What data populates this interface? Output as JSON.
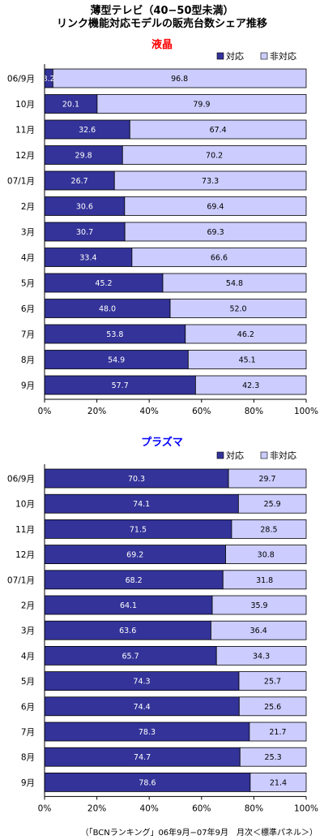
{
  "header": {
    "title_line1": "薄型テレビ（40−50型未満）",
    "title_line2": "リンク機能対応モデルの販売台数シェア推移"
  },
  "colors": {
    "supported": "#333399",
    "unsupported": "#ccccff",
    "lcd_title": "#ff0000",
    "plasma_title": "#0000ff"
  },
  "footer": {
    "source": "（「BCNランキング」06年9月−07年9月　月次＜標準パネル＞）"
  },
  "chart_data": [
    {
      "type": "bar",
      "orientation": "horizontal",
      "stacked": "percent",
      "title": "液晶",
      "categories": [
        "06/9月",
        "10月",
        "11月",
        "12月",
        "07/1月",
        "2月",
        "3月",
        "4月",
        "5月",
        "6月",
        "7月",
        "8月",
        "9月"
      ],
      "series": [
        {
          "name": "対応",
          "values": [
            3.2,
            20.1,
            32.6,
            29.8,
            26.7,
            30.6,
            30.7,
            33.4,
            45.2,
            48.0,
            53.8,
            54.9,
            57.7
          ],
          "labels": [
            "3.2",
            "20.1",
            "32.6",
            "29.8",
            "26.7",
            "30.6",
            "30.7",
            "33.4",
            "45.2",
            "48.0",
            "53.8",
            "54.9",
            "57.7"
          ]
        },
        {
          "name": "非対応",
          "values": [
            96.8,
            79.9,
            67.4,
            70.2,
            73.3,
            69.4,
            69.3,
            66.6,
            54.8,
            52.0,
            46.2,
            45.1,
            42.3
          ],
          "labels": [
            "96.8",
            "79.9",
            "67.4",
            "70.2",
            "73.3",
            "69.4",
            "69.3",
            "66.6",
            "54.8",
            "52.0",
            "46.2",
            "45.1",
            "42.3"
          ]
        }
      ],
      "xlim": [
        0,
        100
      ],
      "xticks": [
        "0%",
        "20%",
        "40%",
        "60%",
        "80%",
        "100%"
      ],
      "legend": "top-right",
      "grid": false
    },
    {
      "type": "bar",
      "orientation": "horizontal",
      "stacked": "percent",
      "title": "プラズマ",
      "categories": [
        "06/9月",
        "10月",
        "11月",
        "12月",
        "07/1月",
        "2月",
        "3月",
        "4月",
        "5月",
        "6月",
        "7月",
        "8月",
        "9月"
      ],
      "series": [
        {
          "name": "対応",
          "values": [
            70.3,
            74.1,
            71.5,
            69.2,
            68.2,
            64.1,
            63.6,
            65.7,
            74.3,
            74.4,
            78.3,
            74.7,
            78.6
          ],
          "labels": [
            "70.3",
            "74.1",
            "71.5",
            "69.2",
            "68.2",
            "64.1",
            "63.6",
            "65.7",
            "74.3",
            "74.4",
            "78.3",
            "74.7",
            "78.6"
          ]
        },
        {
          "name": "非対応",
          "values": [
            29.7,
            25.9,
            28.5,
            30.8,
            31.8,
            35.9,
            36.4,
            34.3,
            25.7,
            25.6,
            21.7,
            25.3,
            21.4
          ],
          "labels": [
            "29.7",
            "25.9",
            "28.5",
            "30.8",
            "31.8",
            "35.9",
            "36.4",
            "34.3",
            "25.7",
            "25.6",
            "21.7",
            "25.3",
            "21.4"
          ]
        }
      ],
      "xlim": [
        0,
        100
      ],
      "xticks": [
        "0%",
        "20%",
        "40%",
        "60%",
        "80%",
        "100%"
      ],
      "legend": "top-right",
      "grid": false
    }
  ]
}
